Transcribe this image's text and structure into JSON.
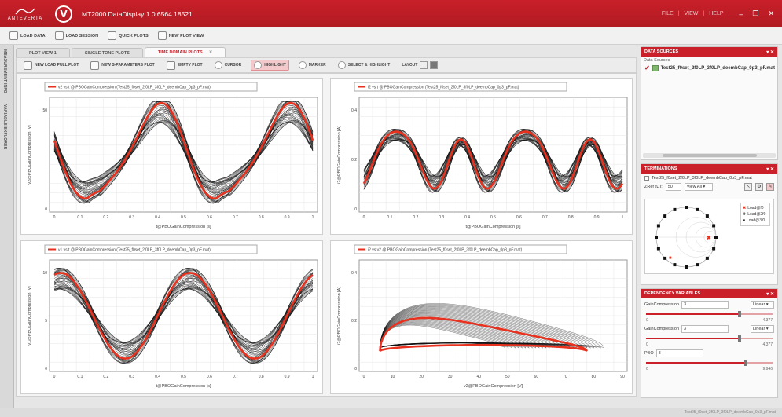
{
  "app": {
    "brand": "ANTEVERTA",
    "title": "MT2000 DataDisplay 1.0.6564.18521",
    "menu": [
      "FILE",
      "VIEW",
      "HELP"
    ]
  },
  "toolbar": {
    "load_data": "LOAD DATA",
    "load_session": "LOAD SESSION",
    "quick_plots": "QUICK PLOTS",
    "new_plot_view": "NEW PLOT VIEW"
  },
  "side_tabs": [
    "MEASUREMENT INFO",
    "VARIABLE EXPLORER"
  ],
  "doc_tabs": [
    {
      "label": "PLOT VIEW 1",
      "active": false
    },
    {
      "label": "SINGLE TONE PLOTS",
      "active": false
    },
    {
      "label": "TIME DOMAIN PLOTS",
      "active": true
    }
  ],
  "plot_toolbar": {
    "new_load_pull_plot": "NEW LOAD PULL PLOT",
    "new_s_parameters_plot": "NEW S-PARAMETERS PLOT",
    "empty_plot": "EMPTY PLOT",
    "cursor": "CURSOR",
    "highlight": "HIGHLIGHT",
    "marker": "MARKER",
    "select_highlight": "SELECT & HIGHLIGHT",
    "layout": "LAYOUT"
  },
  "plots": [
    {
      "legend": "v2 vs t @ PBOGainCompression (Test25_f0set_2f0LP_3f0LP_deembCap_0p3_pF.mat)",
      "xlabel": "t@PBOGainCompression [s]",
      "ylabel": "v2@PBOGainCompression [V]",
      "xticks": [
        "0",
        "0.1",
        "0.2",
        "0.3",
        "0.4",
        "0.5",
        "0.6",
        "0.7",
        "0.8",
        "0.9",
        "1"
      ],
      "yticks": [
        "0",
        "50"
      ]
    },
    {
      "legend": "i2 vs t @ PBOGainCompression (Test25_f0set_2f0LP_3f0LP_deembCap_0p3_pF.mat)",
      "xlabel": "t@PBOGainCompression [s]",
      "ylabel": "i2@PBOGainCompression [A]",
      "xticks": [
        "0",
        "0.1",
        "0.2",
        "0.3",
        "0.4",
        "0.5",
        "0.6",
        "0.7",
        "0.8",
        "0.9",
        "1"
      ],
      "yticks": [
        "0",
        "0.2",
        "0.4"
      ]
    },
    {
      "legend": "v1 vs t @ PBOGainCompression (Test25_f0set_2f0LP_3f0LP_deembCap_0p3_pF.mat)",
      "xlabel": "t@PBOGainCompression [s]",
      "ylabel": "v1@PBOGainCompression [V]",
      "xticks": [
        "0",
        "0.1",
        "0.2",
        "0.3",
        "0.4",
        "0.5",
        "0.6",
        "0.7",
        "0.8",
        "0.9",
        "1"
      ],
      "yticks": [
        "0",
        "5",
        "10"
      ]
    },
    {
      "legend": "i2 vs v2 @ PBOGainCompression (Test25_f0set_2f0LP_3f0LP_deembCap_0p3_pF.mat)",
      "xlabel": "v2@PBOGainCompression [V]",
      "ylabel": "i2@PBOGainCompression [A]",
      "xticks": [
        "0",
        "10",
        "20",
        "30",
        "40",
        "50",
        "60",
        "70",
        "80",
        "90"
      ],
      "yticks": [
        "0",
        "0.2",
        "0.4"
      ]
    }
  ],
  "data_sources": {
    "title": "DATA SOURCES",
    "label": "Data Sources",
    "file": "Test25_f0set_2f0LP_3f0LP_deembCap_0p3_pF.mat"
  },
  "terminations": {
    "title": "TERMINATIONS",
    "file": "Test25_f0set_2f0LP_3f0LP_deembCap_0p3_pF.mat",
    "zref_label": "ZRef (Ω):",
    "zref_value": "50",
    "view_select": "View All",
    "legend": [
      "Load@f0",
      "Load@2f0",
      "Load@3f0"
    ]
  },
  "dependency": {
    "title": "DEPENDENCY VARIABLES",
    "rows": [
      {
        "name": "GainCompression",
        "value": "3",
        "mode": "Linear",
        "min": "0",
        "max": "4.377",
        "level": 0.75
      },
      {
        "name": "GainCompression",
        "value": "3",
        "mode": "Linear",
        "min": "0",
        "max": "4.377",
        "level": 0.75
      },
      {
        "name": "PBO",
        "value": "8",
        "mode": "",
        "min": "0",
        "max": "9.946",
        "level": 0.8
      }
    ]
  },
  "status": "Test25_f0set_2f0LP_3f0LP_deembCap_0p3_pF.mat",
  "colors": {
    "accent": "#c9202a",
    "trace": "#e8321f"
  }
}
